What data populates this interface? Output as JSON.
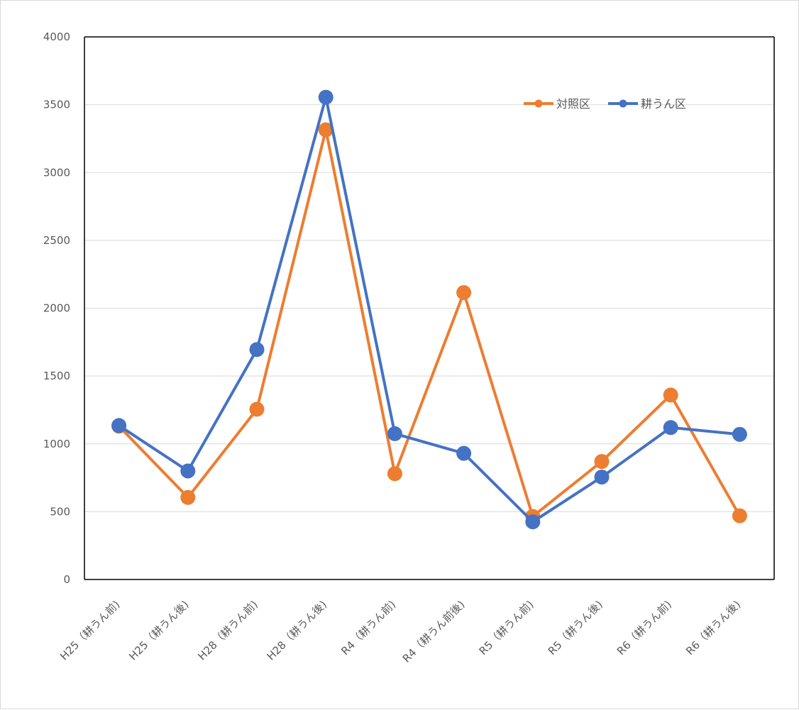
{
  "chart_data": {
    "type": "line",
    "title": "",
    "xlabel": "",
    "ylabel": "",
    "categories": [
      "H25（耕うん前)",
      "H25（耕うん後)",
      "H28（耕うん前)",
      "H28（耕うん後)",
      "R4（耕うん前)",
      "R4（耕うん前後)",
      "R5（耕うん前)",
      "R5（耕うん後)",
      "R6（耕うん前)",
      "R6（耕うん後)"
    ],
    "ylim": [
      0,
      4000
    ],
    "yticks": [
      0,
      500,
      1000,
      1500,
      2000,
      2500,
      3000,
      3500,
      4000
    ],
    "grid": true,
    "legend_position": "top-right",
    "series": [
      {
        "name": "対照区",
        "color": "#ED7D31",
        "values": [
          1130,
          605,
          1255,
          3315,
          780,
          2115,
          465,
          870,
          1360,
          470
        ]
      },
      {
        "name": "耕うん区",
        "color": "#4472C4",
        "values": [
          1135,
          800,
          1695,
          3555,
          1075,
          930,
          425,
          755,
          1120,
          1070
        ]
      }
    ]
  }
}
